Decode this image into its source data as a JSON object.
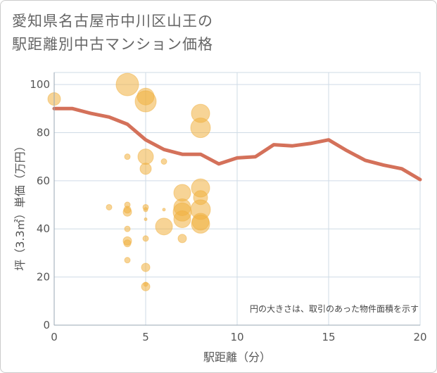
{
  "title_line1": "愛知県名古屋市中川区山王の",
  "title_line2": "駅距離別中古マンション価格",
  "chart_data": {
    "type": "scatter",
    "xlabel": "駅距離（分）",
    "ylabel": "坪（3.3㎡）単価（万円）",
    "note": "円の大きさは、取引のあった物件面積を示す",
    "xlim": [
      0,
      20
    ],
    "ylim": [
      0,
      105
    ],
    "xticks": [
      "0",
      "5",
      "10",
      "15",
      "20"
    ],
    "yticks": [
      "0",
      "20",
      "40",
      "60",
      "80",
      "100"
    ],
    "bubble_color": "#f0b040",
    "line_color": "#d4715a",
    "points": [
      {
        "x": 0,
        "y": 94,
        "r": 9
      },
      {
        "x": 4,
        "y": 100,
        "r": 16
      },
      {
        "x": 4,
        "y": 70,
        "r": 4
      },
      {
        "x": 4,
        "y": 50,
        "r": 4
      },
      {
        "x": 4,
        "y": 48,
        "r": 5
      },
      {
        "x": 4,
        "y": 47,
        "r": 6
      },
      {
        "x": 4,
        "y": 40,
        "r": 4
      },
      {
        "x": 4,
        "y": 35,
        "r": 6
      },
      {
        "x": 4,
        "y": 34,
        "r": 5
      },
      {
        "x": 4,
        "y": 27,
        "r": 4
      },
      {
        "x": 3,
        "y": 49,
        "r": 4
      },
      {
        "x": 5,
        "y": 95,
        "r": 12
      },
      {
        "x": 5,
        "y": 93,
        "r": 15
      },
      {
        "x": 5,
        "y": 70,
        "r": 11
      },
      {
        "x": 5,
        "y": 65,
        "r": 8
      },
      {
        "x": 5,
        "y": 49,
        "r": 4
      },
      {
        "x": 5,
        "y": 48,
        "r": 3
      },
      {
        "x": 5,
        "y": 44,
        "r": 2
      },
      {
        "x": 5,
        "y": 36,
        "r": 4
      },
      {
        "x": 5,
        "y": 24,
        "r": 6
      },
      {
        "x": 5,
        "y": 17,
        "r": 3
      },
      {
        "x": 5,
        "y": 16,
        "r": 6
      },
      {
        "x": 6,
        "y": 68,
        "r": 4
      },
      {
        "x": 6,
        "y": 48,
        "r": 2
      },
      {
        "x": 6,
        "y": 41,
        "r": 12
      },
      {
        "x": 7,
        "y": 55,
        "r": 12
      },
      {
        "x": 7,
        "y": 49,
        "r": 12
      },
      {
        "x": 7,
        "y": 47,
        "r": 13
      },
      {
        "x": 7,
        "y": 44,
        "r": 12
      },
      {
        "x": 7,
        "y": 36,
        "r": 6
      },
      {
        "x": 8,
        "y": 88,
        "r": 13
      },
      {
        "x": 8,
        "y": 82,
        "r": 14
      },
      {
        "x": 8,
        "y": 57,
        "r": 13
      },
      {
        "x": 8,
        "y": 53,
        "r": 10
      },
      {
        "x": 8,
        "y": 48,
        "r": 14
      },
      {
        "x": 8,
        "y": 43,
        "r": 12
      },
      {
        "x": 8,
        "y": 42,
        "r": 13
      }
    ],
    "trend_line": {
      "x": [
        0,
        1,
        2,
        3,
        4,
        5,
        6,
        7,
        8,
        9,
        10,
        11,
        12,
        13,
        14,
        15,
        16,
        17,
        18,
        19,
        20
      ],
      "y": [
        90,
        90,
        88,
        86.5,
        83.5,
        77,
        73,
        71,
        71,
        67,
        69.5,
        70,
        75,
        74.5,
        75.5,
        77,
        72.5,
        68.5,
        66.5,
        65,
        60.5
      ]
    }
  }
}
